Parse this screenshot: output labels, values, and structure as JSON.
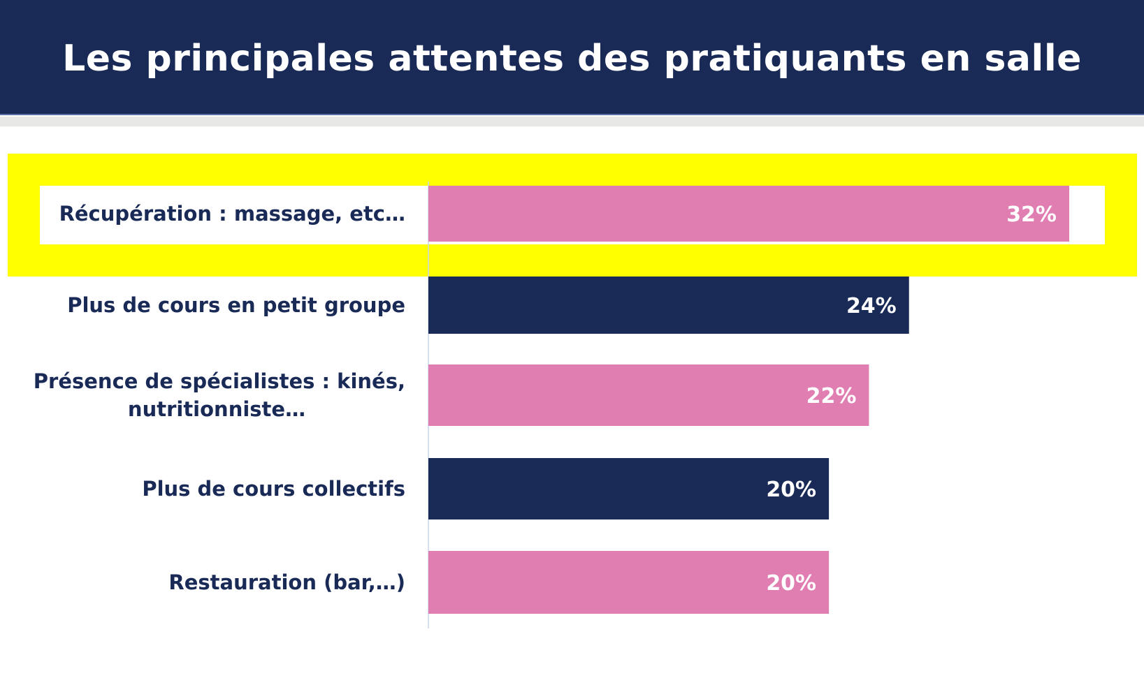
{
  "chart_data": {
    "type": "bar",
    "orientation": "horizontal",
    "title": "Les principales attentes des pratiquants en salle",
    "categories": [
      [
        "Récupération : massage, etc…"
      ],
      [
        "Plus de cours en petit groupe"
      ],
      [
        "Présence de spécialistes : kinés,",
        "nutritionniste…"
      ],
      [
        "Plus de cours collectifs"
      ],
      [
        "Restauration (bar,…)"
      ]
    ],
    "values": [
      32,
      24,
      22,
      20,
      20
    ],
    "value_labels": [
      "32%",
      "24%",
      "22%",
      "20%",
      "20%"
    ],
    "bar_colors": [
      "#e17eb1",
      "#192a57",
      "#e17eb1",
      "#192a57",
      "#e17eb1"
    ],
    "highlighted_index": 0,
    "highlight_color": "#ffff00",
    "xlim": [
      0,
      32
    ],
    "label_color": "#192a57",
    "value_label_color": "#ffffff",
    "grid": false,
    "legend": "none"
  }
}
